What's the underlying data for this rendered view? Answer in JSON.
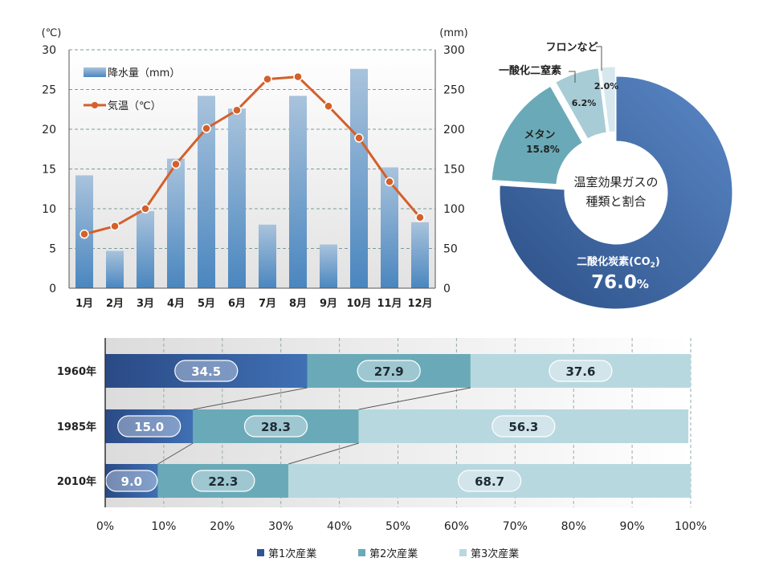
{
  "chart_data": [
    {
      "type": "bar+line",
      "categories": [
        "1月",
        "2月",
        "3月",
        "4月",
        "5月",
        "6月",
        "7月",
        "8月",
        "9月",
        "10月",
        "11月",
        "12月"
      ],
      "left_unit": "(℃)",
      "right_unit": "(mm)",
      "left_ylim": [
        0,
        30
      ],
      "right_ylim": [
        0,
        300
      ],
      "left_ticks": [
        0,
        5,
        10,
        15,
        20,
        25,
        30
      ],
      "right_ticks": [
        0,
        50,
        100,
        150,
        200,
        250,
        300
      ],
      "grid": true,
      "legend_position": "top-left",
      "series": [
        {
          "name": "降水量（mm）",
          "type": "bar",
          "axis": "right",
          "color": "#5b8fc2",
          "values": [
            142,
            47,
            97,
            163,
            242,
            226,
            80,
            242,
            55,
            276,
            152,
            83
          ]
        },
        {
          "name": "気温（℃）",
          "type": "line",
          "axis": "left",
          "color": "#d4602a",
          "values": [
            6.8,
            7.8,
            10.0,
            15.6,
            20.1,
            22.4,
            26.3,
            26.6,
            22.9,
            18.9,
            13.4,
            8.9
          ]
        }
      ]
    },
    {
      "type": "pie",
      "center_label_lines": [
        "温室効果ガスの",
        "種類と割合"
      ],
      "slices": [
        {
          "label": "二酸化炭素",
          "value": 76.0,
          "value_text": "76.0",
          "color": "#3f6aa6"
        },
        {
          "label": "メタン",
          "value": 15.8,
          "value_text": "15.8%",
          "color": "#6aaab8"
        },
        {
          "label": "一酸化二窒素",
          "value": 6.2,
          "value_text": "6.2%",
          "color": "#a8ccd6"
        },
        {
          "label": "フロンなど",
          "value": 2.0,
          "value_text": "2.0%",
          "color": "#d6e8ee"
        }
      ],
      "co2_label_prefix": "二酸化炭素(CO",
      "co2_subscript": "2",
      "co2_label_suffix": ")",
      "percent_sign": "%"
    },
    {
      "type": "bar",
      "orientation": "horizontal-stacked-100",
      "categories": [
        "1960年",
        "1985年",
        "2010年"
      ],
      "xlim": [
        0,
        100
      ],
      "x_ticks": [
        "0%",
        "10%",
        "20%",
        "30%",
        "40%",
        "50%",
        "60%",
        "70%",
        "80%",
        "90%",
        "100%"
      ],
      "legend_position": "bottom",
      "series": [
        {
          "name": "第1次産業",
          "color": "#2f5597",
          "values": [
            34.5,
            15.0,
            9.0
          ],
          "labels": [
            "34.5",
            "15.0",
            "9.0"
          ]
        },
        {
          "name": "第2次産業",
          "color": "#6aaab8",
          "values": [
            27.9,
            28.3,
            22.3
          ],
          "labels": [
            "27.9",
            "28.3",
            "22.3"
          ]
        },
        {
          "name": "第3次産業",
          "color": "#b8d8e0",
          "values": [
            37.6,
            56.3,
            68.7
          ],
          "labels": [
            "37.6",
            "56.3",
            "68.7"
          ]
        }
      ]
    }
  ]
}
